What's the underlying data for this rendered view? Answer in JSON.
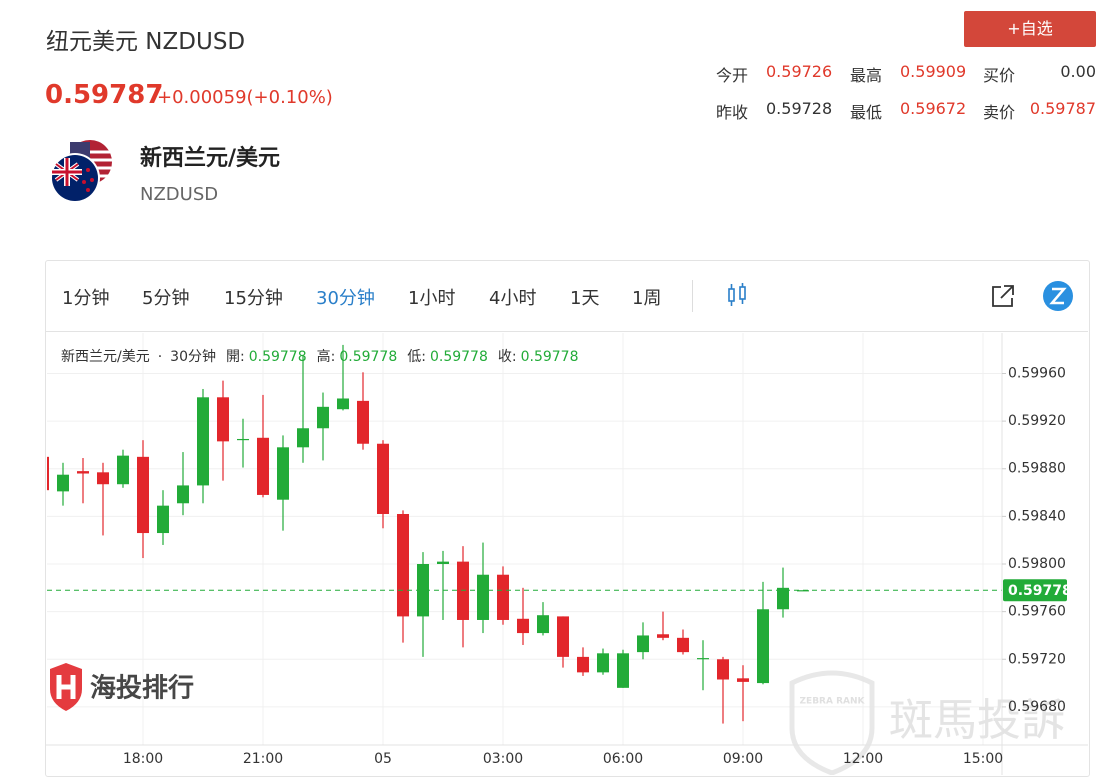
{
  "header": {
    "title": "纽元美元 NZDUSD",
    "price": "0.59787",
    "change": "+0.00059(+0.10%)",
    "button": "+自选"
  },
  "stats": [
    {
      "label": "今开",
      "value": "0.59726"
    },
    {
      "label": "最高",
      "value": "0.59909"
    },
    {
      "label": "买价",
      "value": "0.00"
    },
    {
      "label": "昨收",
      "value": "0.59728"
    },
    {
      "label": "最低",
      "value": "0.59672"
    },
    {
      "label": "卖价",
      "value": "0.59787"
    }
  ],
  "instrument": {
    "name": "新西兰元/美元",
    "code": "NZDUSD"
  },
  "toolbar": {
    "intervals": [
      "1分钟",
      "5分钟",
      "15分钟",
      "30分钟",
      "1小时",
      "4小时",
      "1天",
      "1周"
    ],
    "active": 3
  },
  "watermarks": {
    "brand": "海投排行",
    "zebra": "斑馬投訴",
    "zebra_logo": "ZEBRA RANK"
  },
  "chart_data": {
    "type": "candlestick",
    "legend": {
      "symbol": "新西兰元/美元",
      "separator": "·",
      "interval": "30分钟",
      "fields": [
        {
          "label": "開:",
          "value": "0.59778"
        },
        {
          "label": "高:",
          "value": "0.59778"
        },
        {
          "label": "低:",
          "value": "0.59778"
        },
        {
          "label": "收:",
          "value": "0.59778"
        }
      ]
    },
    "categories": [
      null,
      null,
      null,
      null,
      null,
      "18:00",
      null,
      null,
      null,
      null,
      null,
      "21:00",
      null,
      null,
      null,
      null,
      null,
      "05",
      null,
      null,
      null,
      null,
      null,
      "03:00",
      null,
      null,
      null,
      null,
      null,
      "06:00",
      null,
      null,
      null,
      null,
      null,
      "09:00",
      null,
      null,
      null,
      null,
      null,
      "12:00",
      null,
      null,
      null,
      null,
      null,
      "15:00"
    ],
    "open": [
      0.5989,
      0.59861,
      0.59878,
      0.59877,
      0.59867,
      0.5989,
      0.59826,
      0.59851,
      0.59866,
      0.5994,
      0.59904,
      0.59906,
      0.59854,
      0.59898,
      0.59914,
      0.5993,
      0.59937,
      0.59901,
      0.59842,
      0.59756,
      0.598,
      0.59802,
      0.59753,
      0.59791,
      0.59754,
      0.59742,
      0.59756,
      0.59722,
      0.59709,
      0.59696,
      0.59726,
      0.59741,
      0.59738,
      0.5972,
      0.5972,
      0.59704,
      0.597,
      0.59762,
      0.59778,
      null,
      null,
      null,
      null,
      null,
      null,
      null,
      null,
      null
    ],
    "high": [
      0.59891,
      0.59885,
      0.59889,
      0.59885,
      0.59896,
      0.59904,
      0.59862,
      0.59894,
      0.59947,
      0.59954,
      0.59922,
      0.59942,
      0.59908,
      0.59975,
      0.59944,
      0.59984,
      0.59961,
      0.59904,
      0.59845,
      0.5981,
      0.59811,
      0.59815,
      0.59818,
      0.59798,
      0.5978,
      0.59768,
      0.59756,
      0.5973,
      0.59729,
      0.59728,
      0.59751,
      0.5976,
      0.59745,
      0.59736,
      0.59722,
      0.59715,
      0.59785,
      0.59797,
      0.59778,
      null,
      null,
      null,
      null,
      null,
      null,
      null,
      null,
      null
    ],
    "low": [
      0.5986,
      0.59849,
      0.59851,
      0.59824,
      0.59864,
      0.59805,
      0.59816,
      0.59841,
      0.59851,
      0.5987,
      0.59881,
      0.59856,
      0.59828,
      0.59885,
      0.59887,
      0.59929,
      0.59896,
      0.5983,
      0.59734,
      0.59722,
      0.59753,
      0.5973,
      0.59742,
      0.59749,
      0.59732,
      0.5974,
      0.59713,
      0.59706,
      0.59707,
      0.59696,
      0.5972,
      0.59736,
      0.59724,
      0.59694,
      0.59666,
      0.59668,
      0.59699,
      0.59755,
      0.59778,
      null,
      null,
      null,
      null,
      null,
      null,
      null,
      null,
      null
    ],
    "close": [
      0.59862,
      0.59875,
      0.59876,
      0.59867,
      0.59891,
      0.59826,
      0.59849,
      0.59866,
      0.5994,
      0.59903,
      0.59905,
      0.59858,
      0.59898,
      0.59914,
      0.59932,
      0.59939,
      0.59901,
      0.59842,
      0.59756,
      0.598,
      0.59802,
      0.59753,
      0.59791,
      0.59753,
      0.59742,
      0.59757,
      0.59722,
      0.59709,
      0.59725,
      0.59725,
      0.5974,
      0.59738,
      0.59726,
      0.59721,
      0.59703,
      0.59701,
      0.59762,
      0.5978,
      0.59778,
      null,
      null,
      null,
      null,
      null,
      null,
      null,
      null,
      null
    ],
    "up_color": "#22ab38",
    "down_color": "#e2262b",
    "ylim": [
      0.59648,
      0.59994
    ],
    "yticks": [
      {
        "value": 0.5968,
        "label": "0.59680"
      },
      {
        "value": 0.5972,
        "label": "0.59720"
      },
      {
        "value": 0.5976,
        "label": "0.59760"
      },
      {
        "value": 0.598,
        "label": "0.59800"
      },
      {
        "value": 0.5984,
        "label": "0.59840"
      },
      {
        "value": 0.5988,
        "label": "0.59880"
      },
      {
        "value": 0.5992,
        "label": "0.59920"
      },
      {
        "value": 0.5996,
        "label": "0.59960"
      }
    ],
    "last_price": {
      "value": 0.59778,
      "label": "0.59778"
    },
    "grid": true
  }
}
